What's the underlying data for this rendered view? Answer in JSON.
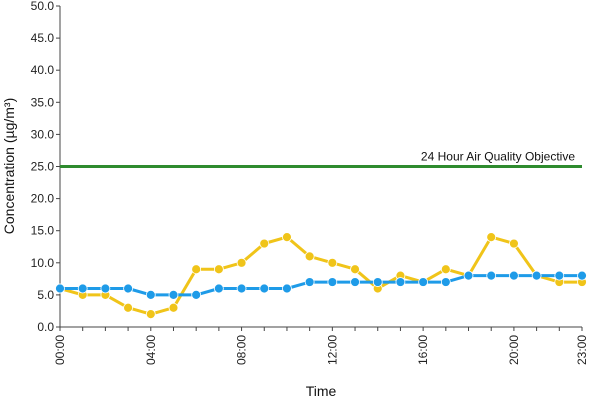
{
  "chart_data": {
    "type": "line",
    "xlabel": "Time",
    "ylabel": "Concentration (µg/m³)",
    "ylim": [
      0,
      50
    ],
    "y_ticks": [
      "0.0",
      "5.0",
      "10.0",
      "15.0",
      "20.0",
      "25.0",
      "30.0",
      "35.0",
      "40.0",
      "45.0",
      "50.0"
    ],
    "x": [
      "00:00",
      "01:00",
      "02:00",
      "03:00",
      "04:00",
      "05:00",
      "06:00",
      "07:00",
      "08:00",
      "09:00",
      "10:00",
      "11:00",
      "12:00",
      "13:00",
      "14:00",
      "15:00",
      "16:00",
      "17:00",
      "18:00",
      "19:00",
      "20:00",
      "21:00",
      "22:00",
      "23:00"
    ],
    "x_tick_labels": [
      "00:00",
      "04:00",
      "08:00",
      "12:00",
      "16:00",
      "20:00",
      "23:00"
    ],
    "grid": false,
    "series": [
      {
        "color": "#f0c419",
        "values": [
          6,
          5,
          5,
          3,
          2,
          3,
          9,
          9,
          10,
          13,
          14,
          11,
          10,
          9,
          6,
          8,
          7,
          9,
          8,
          14,
          13,
          8,
          7,
          7
        ]
      },
      {
        "color": "#1e9be8",
        "values": [
          6,
          6,
          6,
          6,
          5,
          5,
          5,
          6,
          6,
          6,
          6,
          7,
          7,
          7,
          7,
          7,
          7,
          7,
          8,
          8,
          8,
          8,
          8,
          8
        ]
      }
    ],
    "reference_line": {
      "label": "24 Hour Air Quality Objective",
      "value": 25,
      "color": "#2e8b2e"
    }
  }
}
